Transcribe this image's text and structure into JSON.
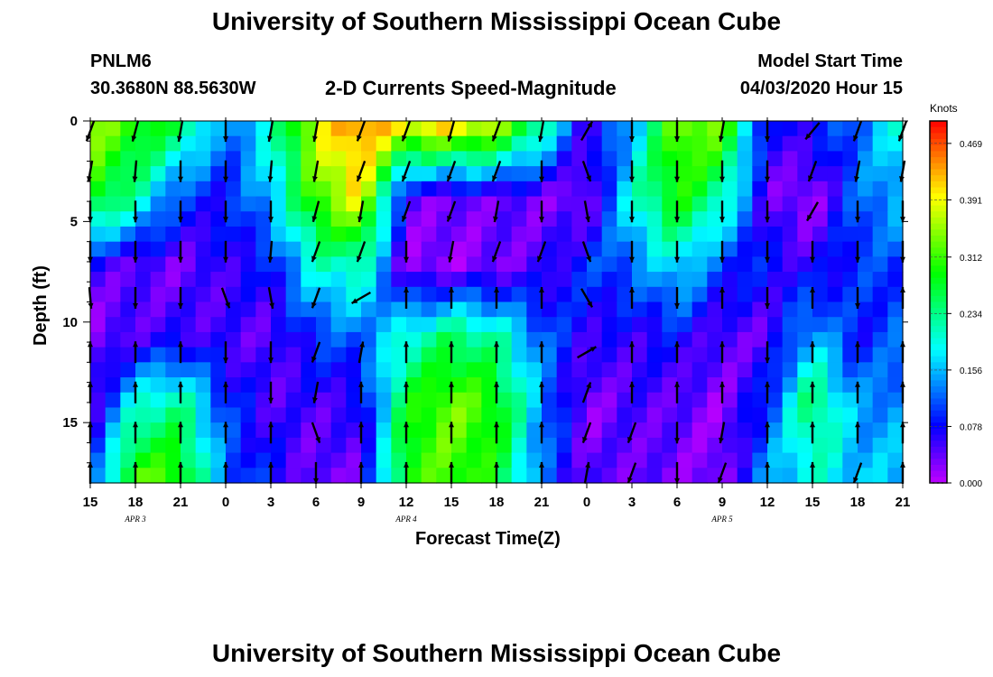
{
  "header": {
    "title": "University of Southern Mississippi Ocean Cube",
    "station_id": "PNLM6",
    "station_coords": "30.3680N 88.5630W",
    "plot_title": "2-D Currents Speed-Magnitude",
    "model_start_label": "Model Start Time",
    "model_start_value": "04/03/2020 Hour 15"
  },
  "footer": {
    "title": "University of Southern Mississippi Ocean Cube"
  },
  "chart_data": {
    "type": "heatmap",
    "xlabel": "Forecast Time(Z)",
    "ylabel": "Depth (ft)",
    "x_tick_labels": [
      "15",
      "18",
      "21",
      "0",
      "3",
      "6",
      "9",
      "12",
      "15",
      "18",
      "21",
      "0",
      "3",
      "6",
      "9",
      "12",
      "15",
      "18",
      "21"
    ],
    "date_labels": [
      {
        "label": "APR 3",
        "after_tick": 1
      },
      {
        "label": "APR 4",
        "after_tick": 7
      },
      {
        "label": "APR 5",
        "after_tick": 14
      }
    ],
    "y_tick_labels": [
      "0",
      "5",
      "10",
      "15"
    ],
    "y_tick_values": [
      0,
      5,
      10,
      15
    ],
    "ylim": [
      0,
      18
    ],
    "colorbar": {
      "unit": "Knots",
      "tick_labels": [
        "0.469",
        "0.391",
        "0.312",
        "0.234",
        "0.156",
        "0.078",
        "0.000"
      ],
      "min": 0,
      "max": 0.5
    },
    "time_steps": 19,
    "depth_levels": [
      0,
      5,
      10,
      15
    ],
    "speed_profiles": [
      [
        0.35,
        0.3,
        0.05,
        0.02,
        0.04,
        0.08
      ],
      [
        0.3,
        0.22,
        0.04,
        0.05,
        0.2,
        0.32
      ],
      [
        0.25,
        0.1,
        0.03,
        0.06,
        0.24,
        0.3
      ],
      [
        0.12,
        0.08,
        0.06,
        0.05,
        0.1,
        0.12
      ],
      [
        0.2,
        0.16,
        0.08,
        0.04,
        0.05,
        0.08
      ],
      [
        0.38,
        0.32,
        0.2,
        0.1,
        0.05,
        0.03
      ],
      [
        0.45,
        0.4,
        0.22,
        0.12,
        0.06,
        0.04
      ],
      [
        0.38,
        0.04,
        0.02,
        0.2,
        0.28,
        0.3
      ],
      [
        0.4,
        0.03,
        0.02,
        0.25,
        0.34,
        0.32
      ],
      [
        0.35,
        0.04,
        0.03,
        0.22,
        0.3,
        0.28
      ],
      [
        0.22,
        0.03,
        0.05,
        0.12,
        0.14,
        0.12
      ],
      [
        0.05,
        0.02,
        0.1,
        0.06,
        0.02,
        0.04
      ],
      [
        0.15,
        0.2,
        0.12,
        0.06,
        0.05,
        0.04
      ],
      [
        0.34,
        0.3,
        0.18,
        0.08,
        0.04,
        0.03
      ],
      [
        0.33,
        0.22,
        0.1,
        0.04,
        0.02,
        0.02
      ],
      [
        0.06,
        0.04,
        0.08,
        0.04,
        0.1,
        0.14
      ],
      [
        0.08,
        0.01,
        0.06,
        0.16,
        0.26,
        0.2
      ],
      [
        0.12,
        0.12,
        0.1,
        0.08,
        0.14,
        0.16
      ],
      [
        0.2,
        0.16,
        0.1,
        0.12,
        0.14,
        0.16
      ]
    ],
    "vector_depths": [
      0.5,
      2.5,
      4.5,
      6.5,
      8.8,
      11.5,
      13.5,
      15.5,
      17.5
    ],
    "vector_directions": [
      [
        200,
        190,
        180,
        180,
        175,
        0,
        0,
        0,
        0
      ],
      [
        195,
        185,
        180,
        180,
        180,
        0,
        0,
        0,
        0
      ],
      [
        190,
        180,
        180,
        180,
        180,
        0,
        0,
        0,
        0
      ],
      [
        180,
        180,
        180,
        180,
        160,
        180,
        0,
        0,
        0
      ],
      [
        190,
        185,
        180,
        185,
        170,
        180,
        180,
        0,
        0
      ],
      [
        190,
        190,
        195,
        200,
        200,
        200,
        190,
        160,
        180
      ],
      [
        200,
        200,
        190,
        200,
        240,
        10,
        0,
        0,
        0
      ],
      [
        200,
        200,
        200,
        180,
        0,
        0,
        0,
        0,
        0
      ],
      [
        195,
        200,
        200,
        190,
        0,
        0,
        0,
        0,
        0
      ],
      [
        200,
        200,
        190,
        200,
        0,
        0,
        0,
        0,
        0
      ],
      [
        190,
        180,
        180,
        200,
        0,
        0,
        0,
        0,
        0
      ],
      [
        30,
        160,
        170,
        160,
        150,
        60,
        20,
        200,
        10
      ],
      [
        180,
        180,
        180,
        180,
        0,
        0,
        0,
        200,
        200
      ],
      [
        180,
        180,
        180,
        180,
        180,
        0,
        0,
        180,
        180
      ],
      [
        190,
        180,
        180,
        180,
        0,
        0,
        0,
        190,
        200
      ],
      [
        180,
        180,
        180,
        180,
        180,
        180,
        0,
        0,
        0
      ],
      [
        220,
        200,
        210,
        180,
        0,
        0,
        0,
        0,
        0
      ],
      [
        200,
        190,
        180,
        180,
        180,
        0,
        0,
        0,
        200
      ],
      [
        200,
        190,
        180,
        180,
        0,
        0,
        0,
        0,
        0
      ]
    ]
  }
}
